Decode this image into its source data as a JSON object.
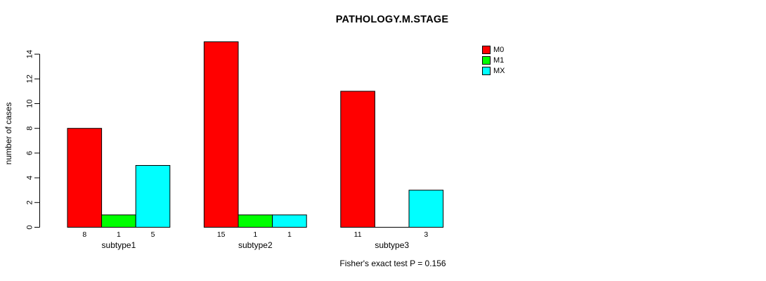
{
  "title": "PATHOLOGY.M.STAGE",
  "ylabel": "number of cases",
  "stat_annotation": "Fisher's exact test P = 0.156",
  "legend": [
    {
      "label": "M0",
      "color": "#ff0000"
    },
    {
      "label": "M1",
      "color": "#00ff00"
    },
    {
      "label": "MX",
      "color": "#00ffff"
    }
  ],
  "chart_data": {
    "type": "bar",
    "grouped": true,
    "title": "PATHOLOGY.M.STAGE",
    "xlabel": "",
    "ylabel": "number of cases",
    "categories": [
      "subtype1",
      "subtype2",
      "subtype3"
    ],
    "series": [
      {
        "name": "M0",
        "color": "#ff0000",
        "values": [
          8,
          15,
          11
        ]
      },
      {
        "name": "M1",
        "color": "#00ff00",
        "values": [
          1,
          1,
          0
        ]
      },
      {
        "name": "MX",
        "color": "#00ffff",
        "values": [
          5,
          1,
          3
        ]
      }
    ],
    "bar_value_labels": [
      [
        "8",
        "1",
        "5"
      ],
      [
        "15",
        "1",
        "1"
      ],
      [
        "11",
        "",
        "3"
      ]
    ],
    "yticks": [
      0,
      2,
      4,
      6,
      8,
      10,
      12,
      14
    ],
    "ylim": [
      0,
      15
    ],
    "grid": false,
    "bar_border_color": "#000000",
    "legend_position": "top-right",
    "annotation": "Fisher's exact test P = 0.156"
  }
}
